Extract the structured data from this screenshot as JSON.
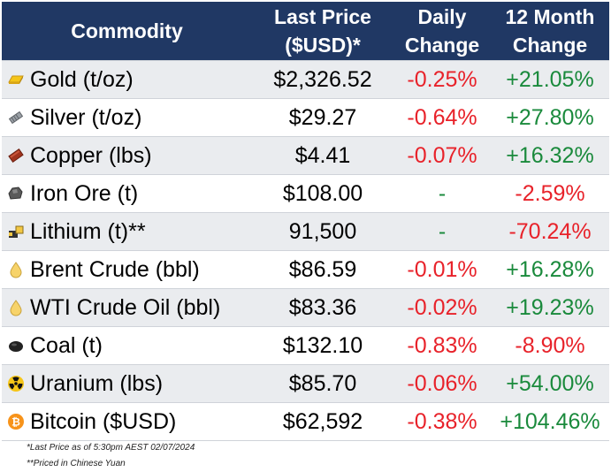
{
  "table": {
    "headers": {
      "commodity": "Commodity",
      "last_price_line1": "Last Price",
      "last_price_line2": "($USD)*",
      "daily_line1": "Daily",
      "daily_line2": "Change",
      "month_line1": "12 Month",
      "month_line2": "Change"
    },
    "rows": [
      {
        "name": "Gold (t/oz)",
        "price": "$2,326.52",
        "daily": "-0.25%",
        "month": "+21.05%",
        "icon": "gold-bar-icon"
      },
      {
        "name": "Silver (t/oz)",
        "price": "$29.27",
        "daily": "-0.64%",
        "month": "+27.80%",
        "icon": "silver-bar-icon"
      },
      {
        "name": "Copper (lbs)",
        "price": "$4.41",
        "daily": "-0.07%",
        "month": "+16.32%",
        "icon": "copper-bar-icon"
      },
      {
        "name": "Iron Ore (t)",
        "price": "$108.00",
        "daily": "-",
        "month": "-2.59%",
        "icon": "iron-ore-icon"
      },
      {
        "name": "Lithium (t)**",
        "price": "91,500",
        "daily": "-",
        "month": "-70.24%",
        "icon": "lithium-icon"
      },
      {
        "name": "Brent Crude (bbl)",
        "price": "$86.59",
        "daily": "-0.01%",
        "month": "+16.28%",
        "icon": "oil-drop-icon"
      },
      {
        "name": "WTI Crude Oil (bbl)",
        "price": "$83.36",
        "daily": "-0.02%",
        "month": "+19.23%",
        "icon": "oil-drop-icon"
      },
      {
        "name": "Coal (t)",
        "price": "$132.10",
        "daily": "-0.83%",
        "month": "-8.90%",
        "icon": "coal-icon"
      },
      {
        "name": "Uranium (lbs)",
        "price": "$85.70",
        "daily": "-0.06%",
        "month": "+54.00%",
        "icon": "radiation-icon"
      },
      {
        "name": "Bitcoin ($USD)",
        "price": "$62,592",
        "daily": "-0.38%",
        "month": "+104.46%",
        "icon": "bitcoin-icon"
      }
    ]
  },
  "notes": {
    "line1": "*Last Price as of 5:30pm AEST 02/07/2024",
    "line2": "**Priced in Chinese Yuan"
  },
  "colors": {
    "header_bg": "#203864",
    "negative": "#e8222a",
    "positive": "#1a8a3c"
  }
}
